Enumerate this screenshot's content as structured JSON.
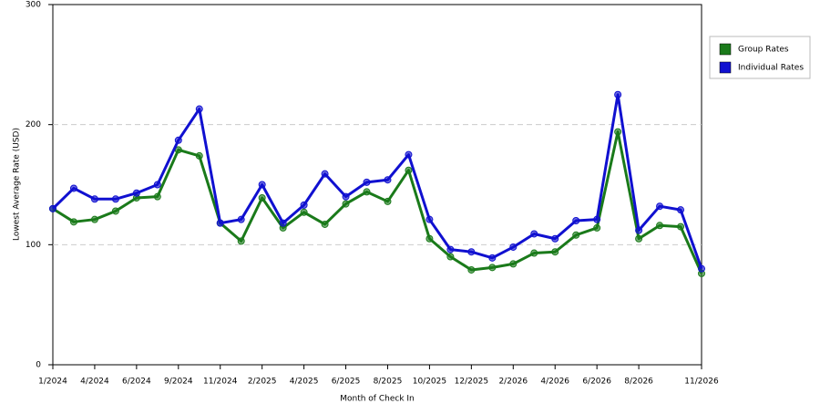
{
  "chart_data": {
    "type": "line",
    "x_label": "Month of Check In",
    "y_label": "Lowest Average Rate (USD)",
    "categories": [
      "1/2024",
      null,
      "4/2024",
      null,
      "6/2024",
      null,
      "9/2024",
      null,
      "11/2024",
      null,
      "2/2025",
      null,
      "4/2025",
      null,
      "6/2025",
      null,
      "8/2025",
      null,
      "10/2025",
      null,
      "12/2025",
      null,
      "2/2026",
      null,
      "4/2026",
      null,
      "6/2026",
      null,
      "8/2026",
      null,
      null,
      "11/2026"
    ],
    "series": [
      {
        "name": "Group Rates",
        "color": "#1a7a1a",
        "values": [
          130,
          119,
          121,
          128,
          139,
          140,
          179,
          174,
          118,
          103,
          139,
          114,
          127,
          117,
          134,
          144,
          136,
          162,
          105,
          90,
          79,
          81,
          84,
          93,
          94,
          108,
          114,
          194,
          105,
          116,
          115,
          76
        ]
      },
      {
        "name": "Individual Rates",
        "color": "#1010d0",
        "values": [
          130,
          147,
          138,
          138,
          143,
          150,
          187,
          213,
          118,
          121,
          150,
          118,
          133,
          159,
          140,
          152,
          154,
          175,
          121,
          96,
          94,
          89,
          98,
          109,
          105,
          120,
          121,
          225,
          112,
          132,
          129,
          80
        ]
      }
    ],
    "ylim": [
      0,
      300
    ],
    "yticks": [
      0,
      100,
      200,
      300
    ],
    "grid": true,
    "legend": "right"
  }
}
